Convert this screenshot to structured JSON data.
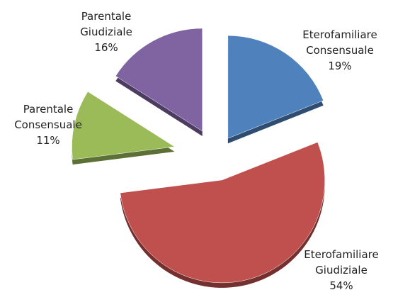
{
  "chart_data": {
    "type": "pie",
    "categories": [
      "Eterofamiliare Consensuale",
      "Eterofamiliare Giudiziale",
      "Parentale Consensuale",
      "Parentale Giudiziale"
    ],
    "values": [
      19,
      54,
      11,
      16
    ],
    "value_labels": [
      "19%",
      "54%",
      "11%",
      "16%"
    ],
    "colors": [
      "#4f81bd",
      "#c0504d",
      "#9bbb59",
      "#8064a2"
    ]
  }
}
